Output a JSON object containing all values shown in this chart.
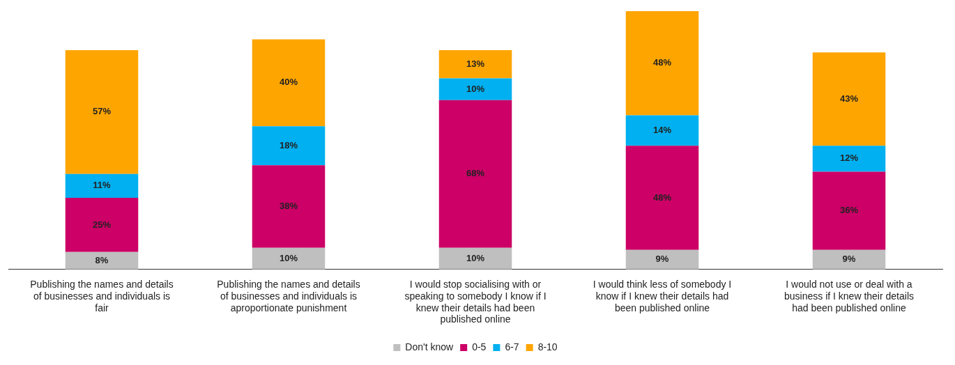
{
  "chart_data": {
    "type": "bar",
    "stacked": true,
    "legend": "bottom",
    "categories": [
      "Publishing the names and details of businesses and individuals is fair",
      "Publishing the names and details of businesses and individuals is aproportionate punishment",
      "I would stop socialising with or speaking to somebody I know if I knew their details had been published online",
      "I would think less of somebody I know if I knew their details had been published online",
      "I would not use or deal with a business if I knew their details had been published online"
    ],
    "series": [
      {
        "name": "Don't know",
        "color": "#bfbfbf",
        "values": [
          8,
          10,
          10,
          9,
          9
        ],
        "value_labels": [
          "8%",
          "10%",
          "10%",
          "9%",
          "9%"
        ]
      },
      {
        "name": "0-5",
        "color": "#cc0066",
        "values": [
          25,
          38,
          68,
          48,
          36
        ],
        "value_labels": [
          "25%",
          "38%",
          "68%",
          "48%",
          "36%"
        ]
      },
      {
        "name": "6-7",
        "color": "#00b0f0",
        "values": [
          11,
          18,
          10,
          14,
          12
        ],
        "value_labels": [
          "11%",
          "18%",
          "10%",
          "14%",
          "12%"
        ]
      },
      {
        "name": "8-10",
        "color": "#ffa500",
        "values": [
          57,
          40,
          13,
          48,
          43
        ],
        "value_labels": [
          "57%",
          "40%",
          "13%",
          "48%",
          "43%"
        ]
      }
    ]
  }
}
